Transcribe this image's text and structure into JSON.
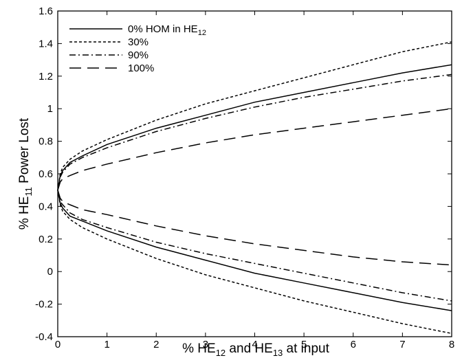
{
  "chart_data": {
    "type": "line",
    "xlabel": {
      "main": "% HE",
      "sub1": "12",
      "mid": " and HE",
      "sub2": "13",
      "tail": " at input"
    },
    "ylabel": {
      "main": "% HE",
      "sub": "11",
      "tail": " Power Lost"
    },
    "xlim": [
      0,
      8
    ],
    "ylim": [
      -0.4,
      1.6
    ],
    "xticks": [
      "0",
      "1",
      "2",
      "3",
      "4",
      "5",
      "6",
      "7",
      "8"
    ],
    "yticks": [
      "-0.4",
      "-0.2",
      "0",
      "0.2",
      "0.4",
      "0.6",
      "0.8",
      "1",
      "1.2",
      "1.4",
      "1.6"
    ],
    "grid": false,
    "legend_position": "top-left",
    "series": [
      {
        "name": "0% HOM in HE",
        "name_sub": "12",
        "style": "solid",
        "upper": {
          "x": [
            0,
            0.05,
            0.1,
            0.25,
            0.5,
            1,
            2,
            3,
            4,
            5,
            6,
            7,
            8
          ],
          "y": [
            0.5,
            0.59,
            0.62,
            0.67,
            0.71,
            0.78,
            0.88,
            0.96,
            1.04,
            1.1,
            1.16,
            1.22,
            1.27
          ]
        },
        "lower": {
          "x": [
            0,
            0.05,
            0.1,
            0.25,
            0.5,
            1,
            2,
            3,
            4,
            5,
            6,
            7,
            8
          ],
          "y": [
            0.5,
            0.42,
            0.39,
            0.34,
            0.31,
            0.25,
            0.15,
            0.07,
            -0.01,
            -0.07,
            -0.13,
            -0.19,
            -0.24
          ]
        }
      },
      {
        "name": "30%",
        "style": "dotted",
        "upper": {
          "x": [
            0,
            0.05,
            0.1,
            0.25,
            0.5,
            1,
            2,
            3,
            4,
            5,
            6,
            7,
            8
          ],
          "y": [
            0.5,
            0.6,
            0.64,
            0.69,
            0.74,
            0.81,
            0.93,
            1.03,
            1.11,
            1.19,
            1.27,
            1.35,
            1.41
          ]
        },
        "lower": {
          "x": [
            0,
            0.05,
            0.1,
            0.25,
            0.5,
            1,
            2,
            3,
            4,
            5,
            6,
            7,
            8
          ],
          "y": [
            0.5,
            0.41,
            0.37,
            0.32,
            0.27,
            0.2,
            0.08,
            -0.02,
            -0.1,
            -0.18,
            -0.25,
            -0.32,
            -0.38
          ]
        }
      },
      {
        "name": "90%",
        "style": "dashdot",
        "upper": {
          "x": [
            0,
            0.05,
            0.1,
            0.25,
            0.5,
            1,
            2,
            3,
            4,
            5,
            6,
            7,
            8
          ],
          "y": [
            0.5,
            0.58,
            0.61,
            0.66,
            0.7,
            0.76,
            0.86,
            0.94,
            1.01,
            1.07,
            1.12,
            1.17,
            1.21
          ]
        },
        "lower": {
          "x": [
            0,
            0.05,
            0.1,
            0.25,
            0.5,
            1,
            2,
            3,
            4,
            5,
            6,
            7,
            8
          ],
          "y": [
            0.5,
            0.43,
            0.41,
            0.36,
            0.32,
            0.27,
            0.18,
            0.11,
            0.05,
            -0.01,
            -0.07,
            -0.13,
            -0.18
          ]
        }
      },
      {
        "name": "100%",
        "style": "longdash",
        "upper": {
          "x": [
            0,
            0.05,
            0.1,
            0.25,
            0.5,
            1,
            2,
            3,
            4,
            5,
            6,
            7,
            8
          ],
          "y": [
            0.5,
            0.55,
            0.57,
            0.59,
            0.62,
            0.66,
            0.73,
            0.79,
            0.84,
            0.88,
            0.92,
            0.96,
            1.0
          ]
        },
        "lower": {
          "x": [
            0,
            0.05,
            0.1,
            0.25,
            0.5,
            1,
            2,
            3,
            4,
            5,
            6,
            7,
            8
          ],
          "y": [
            0.5,
            0.45,
            0.43,
            0.41,
            0.38,
            0.35,
            0.28,
            0.22,
            0.17,
            0.13,
            0.09,
            0.06,
            0.04
          ]
        }
      }
    ]
  }
}
